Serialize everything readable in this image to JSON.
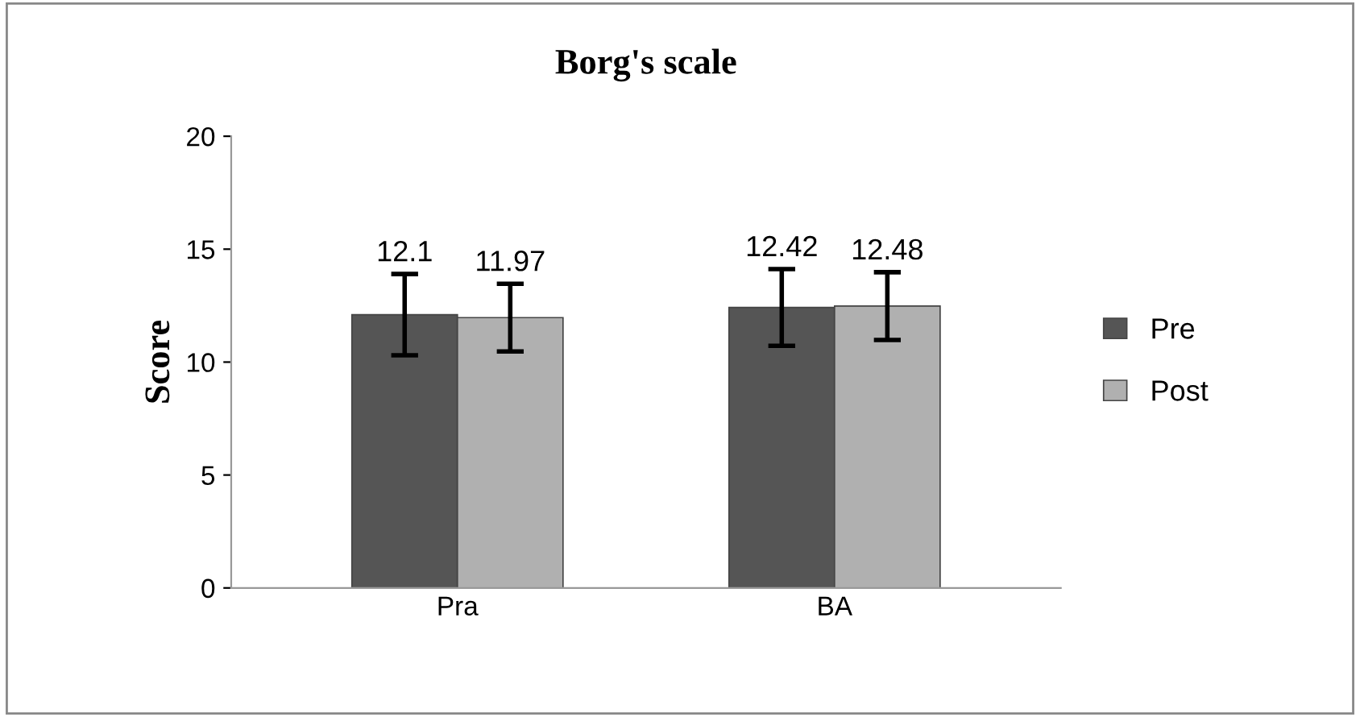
{
  "chart_data": {
    "type": "bar",
    "title": "Borg's scale",
    "ylabel": "Score",
    "categories": [
      "Pra",
      "BA"
    ],
    "series": [
      {
        "name": "Pre",
        "color": "#555555",
        "values": [
          12.1,
          12.42
        ],
        "errors": [
          1.8,
          1.7
        ]
      },
      {
        "name": "Post",
        "color": "#b0b0b0",
        "values": [
          11.97,
          12.48
        ],
        "errors": [
          1.5,
          1.5
        ]
      }
    ],
    "ylim": [
      0,
      20
    ],
    "yticks": [
      0,
      5,
      10,
      15,
      20
    ],
    "grid": false,
    "legend": "right",
    "data_labels": true
  }
}
